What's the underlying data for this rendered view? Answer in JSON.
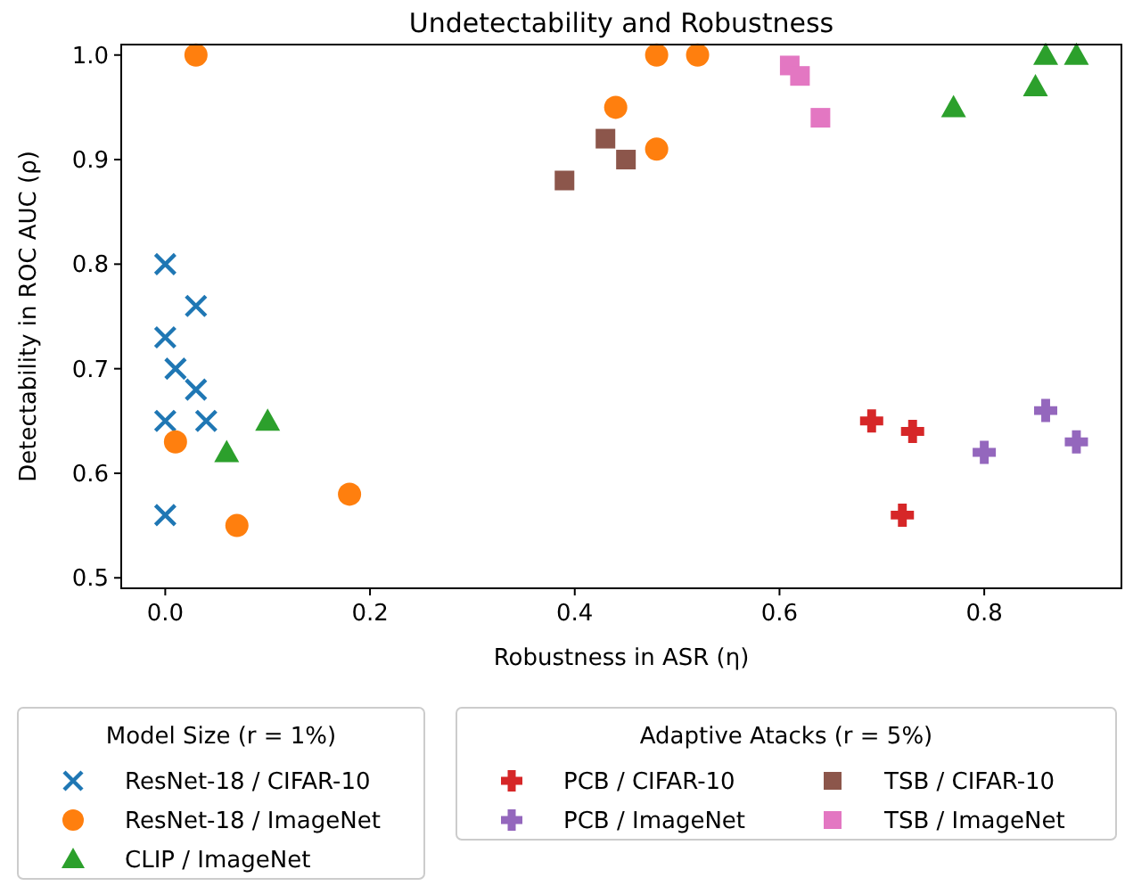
{
  "chart_data": {
    "type": "scatter",
    "title": "Undetectability and Robustness",
    "xlabel": "Robustness in ASR (η)",
    "ylabel": "Detectability in ROC AUC (ρ)",
    "legend_title": [
      "Model Size (r = 1%)",
      "Adaptive Atacks (r = 5%)"
    ],
    "legend": "bottom",
    "grid": false,
    "xlim": [
      -0.043,
      0.934
    ],
    "ylim": [
      0.49,
      1.01
    ],
    "xticks": [
      {
        "value": 0,
        "label": "0.0"
      },
      0.2,
      0.4,
      0.6,
      0.8
    ],
    "yticks": [
      0.5,
      0.6,
      0.7,
      0.8,
      0.9,
      {
        "value": 1,
        "label": "1.0"
      }
    ],
    "series": [
      {
        "name": "ResNet-18 / CIFAR-10",
        "color": "#1f77b4",
        "marker": "x",
        "x": [
          0,
          0.03,
          0,
          0.01,
          0.03,
          0,
          0.04,
          0
        ],
        "values": [
          0.8,
          0.76,
          0.73,
          0.7,
          0.68,
          0.65,
          0.65,
          0.56
        ]
      },
      {
        "name": "ResNet-18 / ImageNet",
        "color": "#ff7f0e",
        "marker": "circle",
        "x": [
          0.03,
          0.01,
          0.18,
          0.07,
          0.48,
          0.52,
          0.44,
          0.48
        ],
        "values": [
          1.0,
          0.63,
          0.58,
          0.55,
          1.0,
          1.0,
          0.95,
          0.91
        ]
      },
      {
        "name": "CLIP / ImageNet",
        "color": "#2ca02c",
        "marker": "triangle",
        "x": [
          0.06,
          0.1,
          0.77,
          0.85,
          0.86,
          0.89
        ],
        "values": [
          0.62,
          0.65,
          0.95,
          0.97,
          1.0,
          1.0
        ]
      },
      {
        "name": "PCB / CIFAR-10",
        "color": "#d62728",
        "marker": "plus",
        "x": [
          0.69,
          0.73,
          0.72
        ],
        "values": [
          0.65,
          0.64,
          0.56
        ]
      },
      {
        "name": "PCB / ImageNet",
        "color": "#9467bd",
        "marker": "plus",
        "x": [
          0.8,
          0.86,
          0.89
        ],
        "values": [
          0.62,
          0.66,
          0.63
        ]
      },
      {
        "name": "TSB / CIFAR-10",
        "color": "#8c564b",
        "marker": "square",
        "x": [
          0.39,
          0.43,
          0.45
        ],
        "values": [
          0.88,
          0.92,
          0.9
        ]
      },
      {
        "name": "TSB / ImageNet",
        "color": "#e377c2",
        "marker": "square",
        "x": [
          0.61,
          0.62,
          0.64
        ],
        "values": [
          0.99,
          0.98,
          0.94
        ]
      }
    ]
  }
}
